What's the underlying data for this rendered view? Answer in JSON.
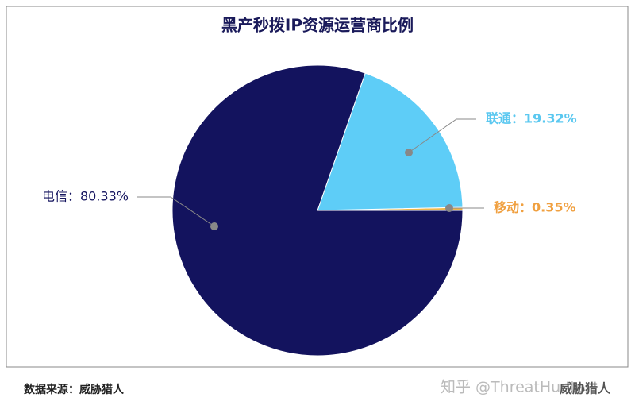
{
  "chart_data": {
    "type": "pie",
    "title": "黑产秒拨IP资源运营商比例",
    "values": [
      0.35,
      19.32,
      80.33
    ],
    "value_labels": [
      "移动：0.35%",
      "联通：19.32%",
      "电信：80.33%"
    ],
    "colors": [
      "#f2b84b",
      "#5ecdf7",
      "#13135e"
    ],
    "label_colors": [
      "#f0a040",
      "#5bc8f0",
      "#13135e"
    ]
  },
  "footer": {
    "source": "数据来源：威胁猎人",
    "watermark": "知乎 @ThreatHunter",
    "logo": "威胁猎人"
  }
}
